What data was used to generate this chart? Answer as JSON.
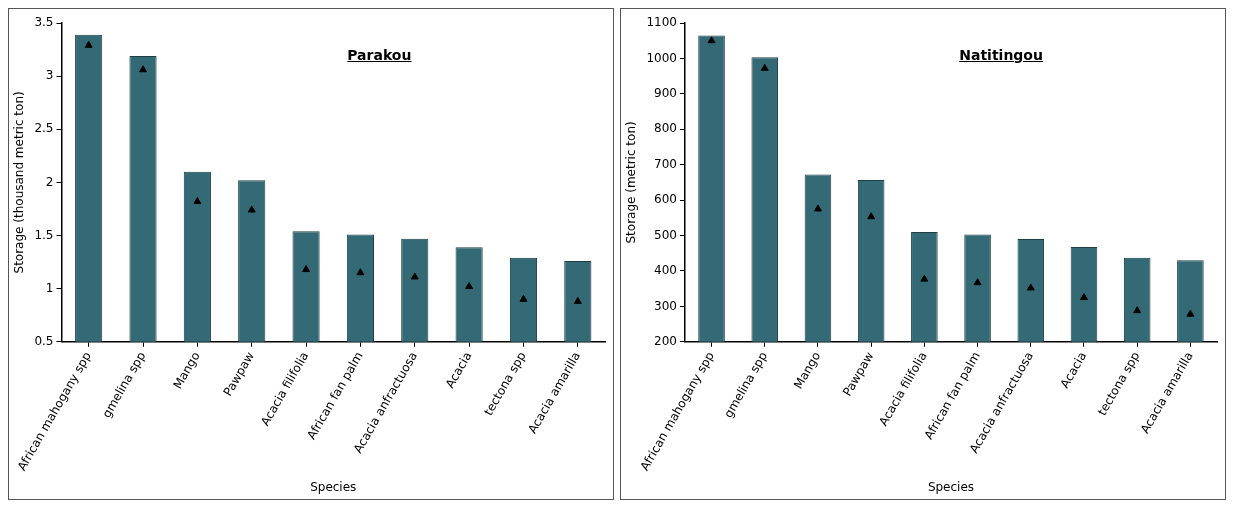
{
  "chart_data": [
    {
      "type": "bar",
      "title": "Parakou",
      "xlabel": "Species",
      "ylabel": "Storage (thousand metric ton)",
      "categories": [
        "African mahogany spp",
        "gmelina spp",
        "Mango",
        "Pawpaw",
        "Acacia filifolia",
        "African fan palm",
        "Acacia anfractuosa",
        "Acacia",
        "tectona spp",
        "Acacia amarilla"
      ],
      "series": [
        {
          "color": "#336a75",
          "values": [
            3.39,
            3.19,
            2.1,
            2.02,
            1.54,
            1.51,
            1.47,
            1.39,
            1.29,
            1.26
          ]
        },
        {
          "type": "scatter",
          "color": "#000000",
          "x": [
            "African mahogany spp",
            "gmelina spp",
            "Mango",
            "Pawpaw",
            "Acacia filifolia",
            "African fan palm",
            "Acacia anfractuosa",
            "Acacia",
            "tectona spp",
            "Acacia amarilla"
          ],
          "values": [
            3.29,
            3.06,
            1.82,
            1.74,
            1.18,
            1.15,
            1.11,
            1.02,
            0.9,
            0.88
          ]
        }
      ],
      "ylim": [
        0.5,
        3.5
      ],
      "yticks": [
        0.5,
        1,
        1.5,
        2,
        2.5,
        3,
        3.5
      ],
      "marker": "triangle",
      "grid": false,
      "legend": false
    },
    {
      "type": "bar",
      "title": "Natitingou",
      "xlabel": "Species",
      "ylabel": "Storage (metric ton)",
      "categories": [
        "African mahogany spp",
        "gmelina spp",
        "Mango",
        "Pawpaw",
        "Acacia filifolia",
        "African fan palm",
        "Acacia anfractuosa",
        "Acacia",
        "tectona spp",
        "Acacia amarilla"
      ],
      "series": [
        {
          "color": "#336a75",
          "values": [
            1065,
            1003,
            672,
            657,
            510,
            503,
            490,
            468,
            437,
            430
          ]
        },
        {
          "type": "scatter",
          "color": "#000000",
          "x": [
            "African mahogany spp",
            "gmelina spp",
            "Mango",
            "Pawpaw",
            "Acacia filifolia",
            "African fan palm",
            "Acacia anfractuosa",
            "Acacia",
            "tectona spp",
            "Acacia amarilla"
          ],
          "values": [
            1050,
            972,
            575,
            553,
            377,
            367,
            352,
            325,
            288,
            278
          ]
        }
      ],
      "ylim": [
        200,
        1100
      ],
      "yticks": [
        200,
        300,
        400,
        500,
        600,
        700,
        800,
        900,
        1000,
        1100
      ],
      "marker": "triangle",
      "grid": false,
      "legend": false
    }
  ]
}
